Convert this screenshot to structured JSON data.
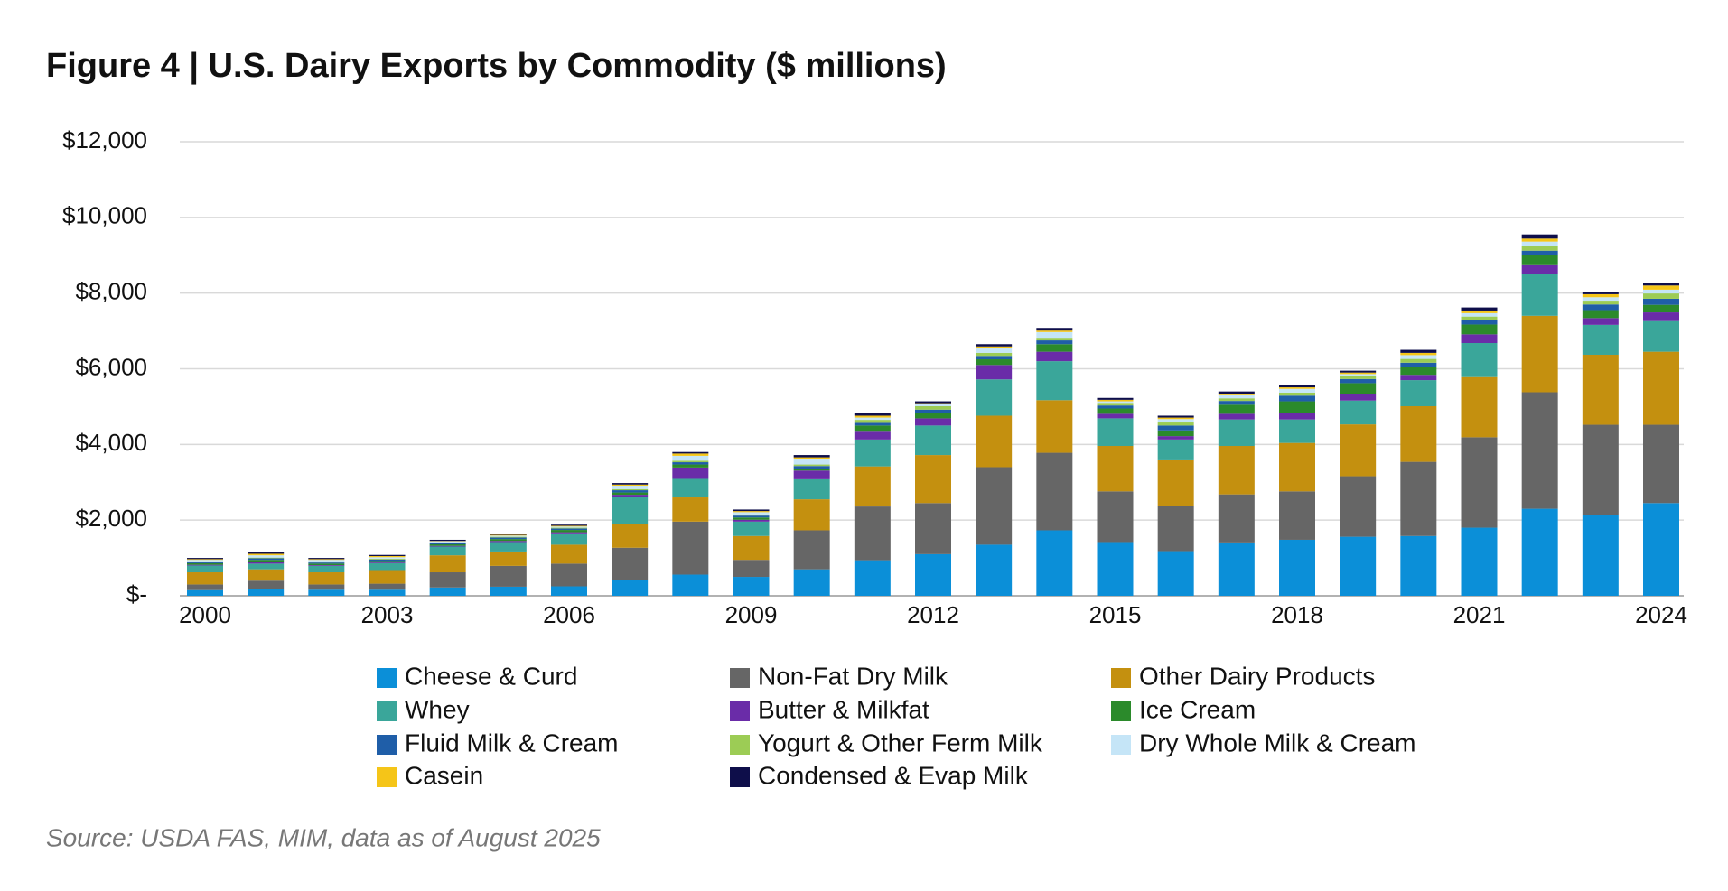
{
  "chart_data": {
    "type": "bar",
    "stacked": true,
    "title": "Figure 4  |  U.S. Dairy Exports by Commodity ($ millions)",
    "source": "Source: USDA FAS, MIM, data as of August 2025",
    "categories": [
      "2000",
      null,
      null,
      "2003",
      null,
      null,
      "2006",
      null,
      null,
      "2009",
      null,
      null,
      "2012",
      null,
      null,
      "2015",
      null,
      null,
      "2018",
      null,
      null,
      "2021",
      null,
      null,
      "2024"
    ],
    "ylim": [
      0,
      12000
    ],
    "yticks": [
      {
        "value": 0,
        "label": "$-"
      },
      {
        "value": 2000,
        "label": "$2,000"
      },
      {
        "value": 4000,
        "label": "$4,000"
      },
      {
        "value": 6000,
        "label": "$6,000"
      },
      {
        "value": 8000,
        "label": "$8,000"
      },
      {
        "value": 10000,
        "label": "$10,000"
      },
      {
        "value": 12000,
        "label": "$12,000"
      }
    ],
    "grid": true,
    "series": [
      {
        "name": "Cheese & Curd",
        "color": "#0b8fd8",
        "values": [
          150,
          170,
          160,
          160,
          220,
          240,
          250,
          410,
          560,
          500,
          700,
          940,
          1100,
          1350,
          1730,
          1420,
          1180,
          1410,
          1480,
          1560,
          1580,
          1800,
          2300,
          2130,
          2450
        ]
      },
      {
        "name": "Non-Fat Dry Milk",
        "color": "#666666",
        "values": [
          150,
          230,
          140,
          160,
          400,
          550,
          600,
          860,
          1400,
          450,
          1030,
          1420,
          1350,
          2050,
          2050,
          1340,
          1190,
          1270,
          1280,
          1600,
          1960,
          2390,
          3080,
          2390,
          2070
        ]
      },
      {
        "name": "Other Dairy Products",
        "color": "#c4900f",
        "values": [
          320,
          300,
          320,
          360,
          450,
          380,
          500,
          630,
          640,
          630,
          820,
          1060,
          1270,
          1360,
          1390,
          1200,
          1210,
          1280,
          1280,
          1370,
          1470,
          1590,
          2020,
          1850,
          1930
        ]
      },
      {
        "name": "Whey",
        "color": "#3aa69a",
        "values": [
          180,
          150,
          170,
          180,
          230,
          250,
          300,
          720,
          490,
          380,
          530,
          710,
          780,
          960,
          1030,
          730,
          550,
          700,
          620,
          630,
          690,
          900,
          1100,
          790,
          810
        ]
      },
      {
        "name": "Butter & Milkfat",
        "color": "#6a2ca8",
        "values": [
          20,
          40,
          20,
          20,
          20,
          30,
          30,
          50,
          300,
          50,
          230,
          230,
          190,
          380,
          250,
          120,
          90,
          150,
          160,
          160,
          140,
          230,
          260,
          180,
          230
        ]
      },
      {
        "name": "Ice Cream",
        "color": "#2b8a2b",
        "values": [
          40,
          60,
          40,
          40,
          40,
          50,
          60,
          60,
          80,
          60,
          50,
          140,
          150,
          150,
          200,
          140,
          150,
          240,
          320,
          300,
          200,
          260,
          240,
          210,
          200
        ]
      },
      {
        "name": "Fluid Milk & Cream",
        "color": "#1f5ea8",
        "values": [
          30,
          40,
          30,
          40,
          30,
          40,
          40,
          60,
          60,
          50,
          70,
          70,
          80,
          90,
          100,
          80,
          130,
          100,
          150,
          110,
          120,
          110,
          120,
          150,
          160
        ]
      },
      {
        "name": "Yogurt & Other Ferm Milk",
        "color": "#9ccc55",
        "values": [
          20,
          20,
          20,
          20,
          20,
          20,
          20,
          30,
          40,
          30,
          40,
          80,
          90,
          80,
          70,
          70,
          80,
          70,
          80,
          70,
          100,
          100,
          130,
          100,
          140
        ]
      },
      {
        "name": "Dry Whole Milk & Cream",
        "color": "#c5e5f7",
        "values": [
          40,
          60,
          50,
          40,
          30,
          30,
          30,
          90,
          130,
          60,
          150,
          60,
          50,
          130,
          150,
          40,
          90,
          80,
          100,
          60,
          100,
          90,
          110,
          90,
          100
        ]
      },
      {
        "name": "Casein",
        "color": "#f5c518",
        "values": [
          20,
          40,
          20,
          30,
          10,
          20,
          20,
          30,
          60,
          30,
          40,
          50,
          30,
          40,
          40,
          40,
          40,
          40,
          40,
          40,
          60,
          70,
          80,
          80,
          110
        ]
      },
      {
        "name": "Condensed & Evap Milk",
        "color": "#0e0e4a",
        "values": [
          30,
          40,
          30,
          30,
          30,
          30,
          30,
          40,
          40,
          40,
          60,
          60,
          50,
          60,
          70,
          50,
          50,
          60,
          50,
          50,
          80,
          80,
          110,
          60,
          70
        ]
      }
    ]
  }
}
